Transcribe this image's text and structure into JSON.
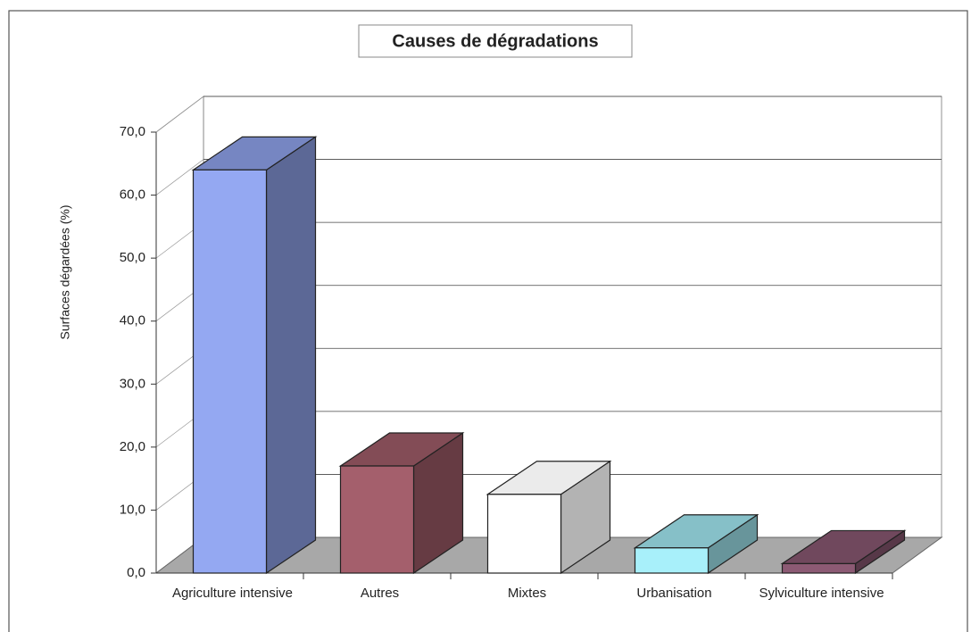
{
  "chart_data": {
    "type": "bar3d",
    "title": "Causes de dégradations",
    "y_label": "Surfaces dégardées (%)",
    "categories": [
      "Agriculture intensive",
      "Autres",
      "Mixtes",
      "Urbanisation",
      "Sylviculture intensive"
    ],
    "values": [
      64,
      17,
      12.5,
      4,
      1.5
    ],
    "colors": [
      "#94a8f2",
      "#a45f6c",
      "#ffffff",
      "#a8f0fa",
      "#8c5a74"
    ],
    "ylim": [
      0,
      70
    ],
    "yticks": [
      {
        "value": 0,
        "label": "0,0"
      },
      {
        "value": 10,
        "label": "10,0"
      },
      {
        "value": 20,
        "label": "20,0"
      },
      {
        "value": 30,
        "label": "30,0"
      },
      {
        "value": 40,
        "label": "40,0"
      },
      {
        "value": 50,
        "label": "50,0"
      },
      {
        "value": 60,
        "label": "60,0"
      },
      {
        "value": 70,
        "label": "70,0"
      }
    ],
    "grid": true
  }
}
